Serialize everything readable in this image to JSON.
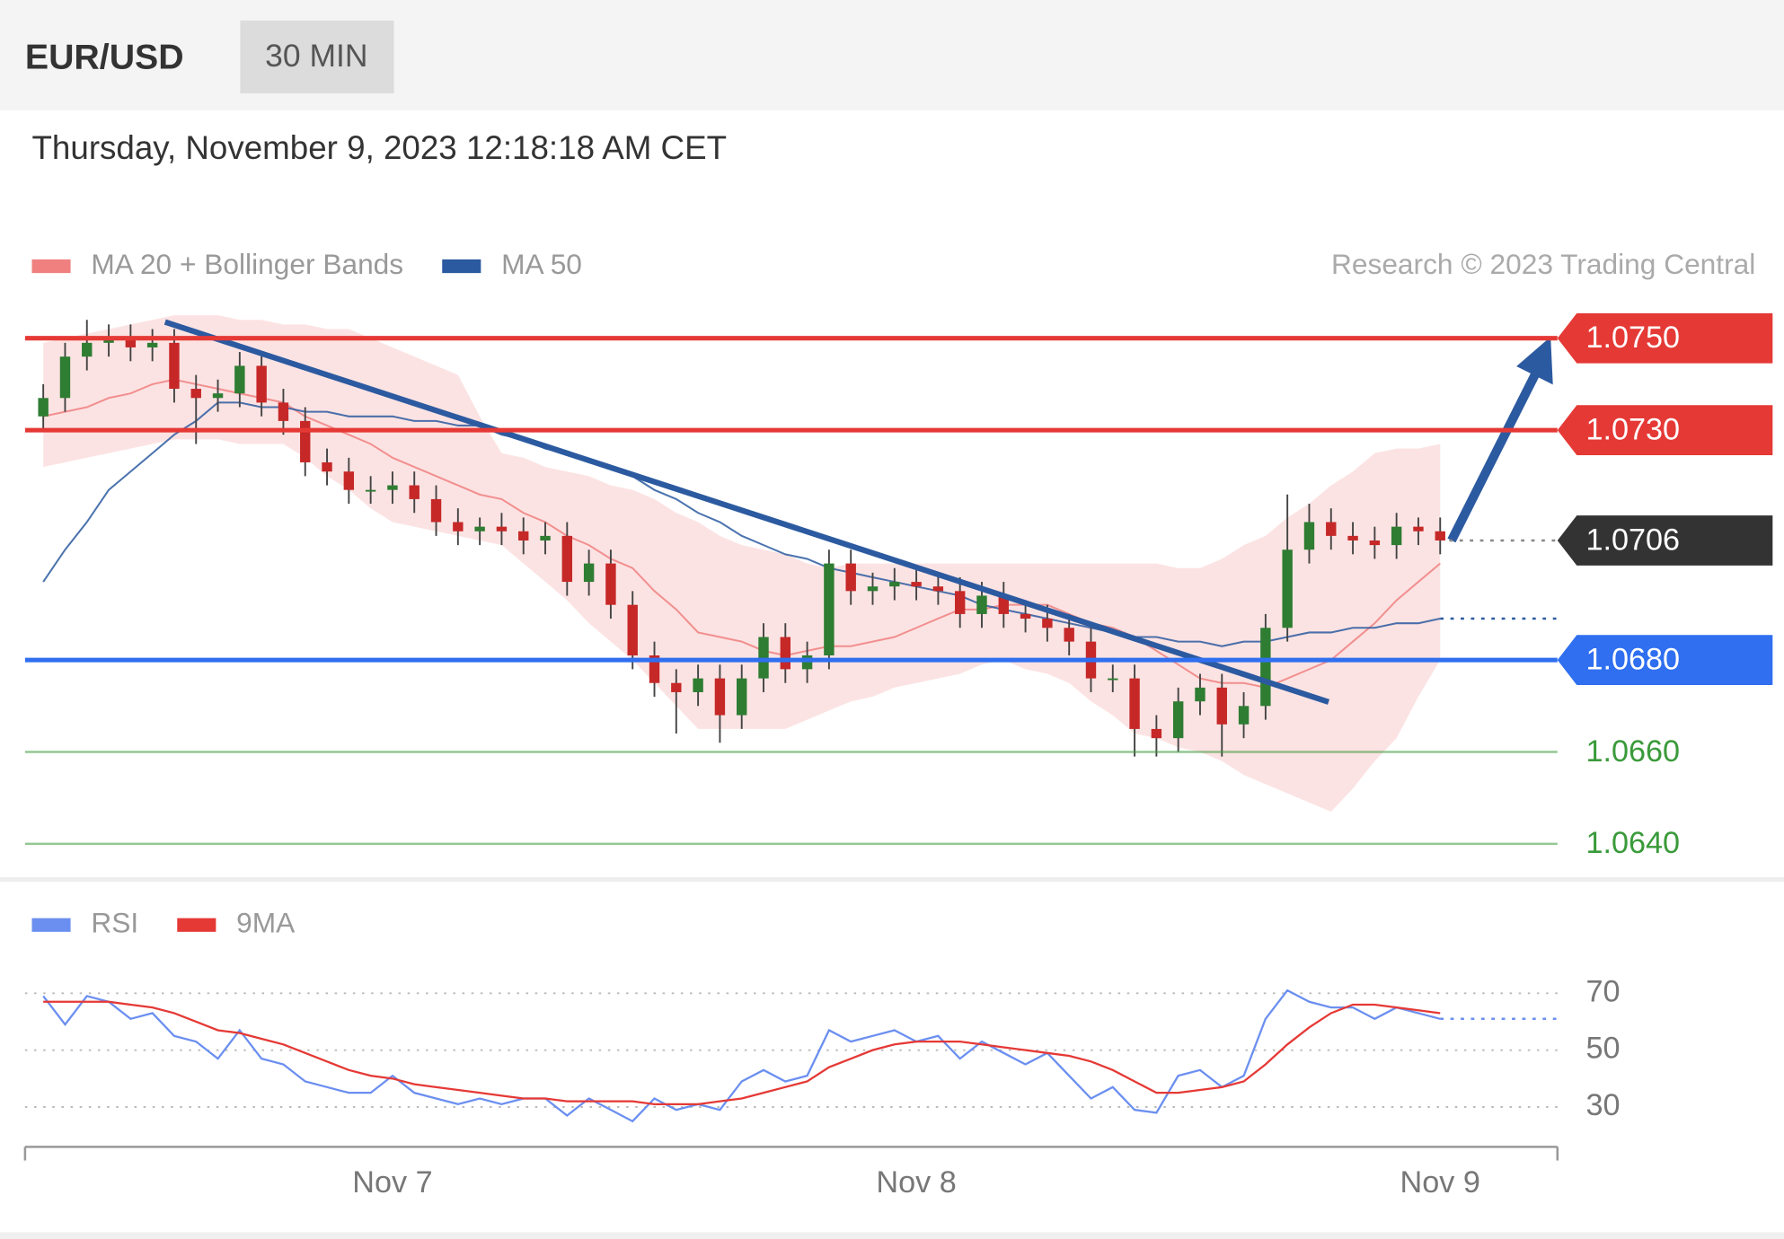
{
  "header": {
    "symbol": "EUR/USD",
    "interval": "30 MIN",
    "timestamp": "Thursday, November 9, 2023 12:18:18 AM CET"
  },
  "chart_data": [
    {
      "type": "candlestick",
      "credit": "Research © 2023 Trading Central",
      "up_color": "#2e7d32",
      "down_color": "#c62828",
      "ylim": [
        1.0633,
        1.0757
      ],
      "open": [
        1.0733,
        1.0737,
        1.0746,
        1.0749,
        1.075,
        1.0748,
        1.0749,
        1.0739,
        1.0737,
        1.0738,
        1.0744,
        1.0736,
        1.0732,
        1.0723,
        1.0721,
        1.0717,
        1.0717,
        1.0718,
        1.0715,
        1.071,
        1.0708,
        1.0709,
        1.0708,
        1.0706,
        1.0707,
        1.0697,
        1.0701,
        1.0692,
        1.0681,
        1.0675,
        1.0673,
        1.0676,
        1.0668,
        1.0676,
        1.0685,
        1.0678,
        1.0681,
        1.0701,
        1.0695,
        1.0696,
        1.0697,
        1.0696,
        1.0695,
        1.069,
        1.0694,
        1.069,
        1.0689,
        1.0687,
        1.0684,
        1.0676,
        1.0676,
        1.0665,
        1.0663,
        1.0671,
        1.0674,
        1.0666,
        1.067,
        1.0687,
        1.0704,
        1.071,
        1.0707,
        1.0706,
        1.0705,
        1.0709,
        1.0708
      ],
      "high": [
        1.074,
        1.0749,
        1.0754,
        1.0753,
        1.0753,
        1.0752,
        1.0752,
        1.0742,
        1.0741,
        1.0747,
        1.0747,
        1.0739,
        1.0735,
        1.0726,
        1.0724,
        1.072,
        1.0721,
        1.0721,
        1.0718,
        1.0713,
        1.0711,
        1.0712,
        1.0711,
        1.071,
        1.071,
        1.0704,
        1.0704,
        1.0695,
        1.0684,
        1.0678,
        1.0679,
        1.0679,
        1.0679,
        1.0688,
        1.0688,
        1.0684,
        1.0704,
        1.0704,
        1.0699,
        1.07,
        1.07,
        1.0699,
        1.0698,
        1.0697,
        1.0697,
        1.0693,
        1.0692,
        1.069,
        1.0687,
        1.0679,
        1.0679,
        1.0668,
        1.0674,
        1.0677,
        1.0677,
        1.0673,
        1.069,
        1.0716,
        1.0714,
        1.0713,
        1.071,
        1.0709,
        1.0712,
        1.0711,
        1.0711
      ],
      "low": [
        1.073,
        1.0734,
        1.0743,
        1.0746,
        1.0745,
        1.0745,
        1.0736,
        1.0727,
        1.0734,
        1.0735,
        1.0733,
        1.0729,
        1.072,
        1.0718,
        1.0714,
        1.0714,
        1.0714,
        1.0712,
        1.0707,
        1.0705,
        1.0705,
        1.0705,
        1.0703,
        1.0703,
        1.0694,
        1.0694,
        1.0689,
        1.0678,
        1.0672,
        1.0664,
        1.067,
        1.0662,
        1.0665,
        1.0673,
        1.0675,
        1.0675,
        1.0678,
        1.0692,
        1.0692,
        1.0693,
        1.0693,
        1.0692,
        1.0687,
        1.0687,
        1.0687,
        1.0686,
        1.0684,
        1.0681,
        1.0673,
        1.0673,
        1.0659,
        1.0659,
        1.066,
        1.0668,
        1.0659,
        1.0663,
        1.0667,
        1.0684,
        1.0701,
        1.0704,
        1.0703,
        1.0702,
        1.0702,
        1.0705,
        1.0703
      ],
      "close": [
        1.0737,
        1.0746,
        1.0749,
        1.075,
        1.0748,
        1.0749,
        1.0739,
        1.0737,
        1.0738,
        1.0744,
        1.0736,
        1.0732,
        1.0723,
        1.0721,
        1.0717,
        1.0717,
        1.0718,
        1.0715,
        1.071,
        1.0708,
        1.0709,
        1.0708,
        1.0706,
        1.0707,
        1.0697,
        1.0701,
        1.0692,
        1.0681,
        1.0675,
        1.0673,
        1.0676,
        1.0668,
        1.0676,
        1.0685,
        1.0678,
        1.0681,
        1.0701,
        1.0695,
        1.0696,
        1.0697,
        1.0696,
        1.0695,
        1.069,
        1.0694,
        1.069,
        1.0689,
        1.0687,
        1.0684,
        1.0676,
        1.0676,
        1.0665,
        1.0663,
        1.0671,
        1.0674,
        1.0666,
        1.067,
        1.0687,
        1.0704,
        1.071,
        1.0707,
        1.0706,
        1.0705,
        1.0709,
        1.0708,
        1.0706
      ],
      "series": [
        {
          "name": "MA 20 + Bollinger Bands",
          "color": "#f08080",
          "values": [
            1.0733,
            1.0734,
            1.0735,
            1.0737,
            1.0738,
            1.074,
            1.0741,
            1.074,
            1.0739,
            1.0738,
            1.0737,
            1.0736,
            1.0733,
            1.0731,
            1.0729,
            1.0727,
            1.0724,
            1.0722,
            1.072,
            1.0718,
            1.0716,
            1.0715,
            1.0712,
            1.071,
            1.0707,
            1.0705,
            1.0702,
            1.07,
            1.0695,
            1.0691,
            1.0686,
            1.0685,
            1.0684,
            1.0682,
            1.0681,
            1.0682,
            1.0683,
            1.0683,
            1.0684,
            1.0685,
            1.0687,
            1.0689,
            1.0691,
            1.0691,
            1.0692,
            1.0692,
            1.0692,
            1.069,
            1.0688,
            1.0687,
            1.0685,
            1.0682,
            1.0679,
            1.0676,
            1.0675,
            1.0675,
            1.0674,
            1.0676,
            1.0678,
            1.068,
            1.0684,
            1.0688,
            1.0693,
            1.0697,
            1.0701
          ],
          "upper": [
            1.0749,
            1.075,
            1.0751,
            1.0752,
            1.0753,
            1.0754,
            1.0755,
            1.0755,
            1.0755,
            1.0754,
            1.0754,
            1.0753,
            1.0753,
            1.0752,
            1.0752,
            1.075,
            1.0748,
            1.0746,
            1.0744,
            1.0742,
            1.0733,
            1.0725,
            1.0724,
            1.0722,
            1.0721,
            1.072,
            1.0718,
            1.0717,
            1.0715,
            1.0712,
            1.071,
            1.0707,
            1.0705,
            1.0704,
            1.0703,
            1.0701,
            1.07,
            1.0701,
            1.0701,
            1.0701,
            1.0701,
            1.0701,
            1.0701,
            1.0701,
            1.0701,
            1.0701,
            1.0701,
            1.0701,
            1.0701,
            1.0701,
            1.0701,
            1.0701,
            1.07,
            1.07,
            1.0702,
            1.0705,
            1.0707,
            1.0711,
            1.0714,
            1.0718,
            1.0721,
            1.0725,
            1.0726,
            1.0726,
            1.0727
          ],
          "lower": [
            1.0722,
            1.0723,
            1.0724,
            1.0725,
            1.0726,
            1.0727,
            1.0728,
            1.0728,
            1.0728,
            1.0727,
            1.0727,
            1.0727,
            1.0724,
            1.072,
            1.0717,
            1.0713,
            1.071,
            1.0709,
            1.0708,
            1.0707,
            1.0706,
            1.0705,
            1.0701,
            1.0697,
            1.0693,
            1.0688,
            1.0684,
            1.068,
            1.0675,
            1.067,
            1.0665,
            1.0665,
            1.0665,
            1.0665,
            1.0665,
            1.0667,
            1.0669,
            1.0671,
            1.0672,
            1.0674,
            1.0675,
            1.0676,
            1.0677,
            1.0679,
            1.068,
            1.0678,
            1.0677,
            1.0675,
            1.0671,
            1.0668,
            1.0664,
            1.0663,
            1.0661,
            1.066,
            1.0658,
            1.0655,
            1.0653,
            1.0651,
            1.0649,
            1.0647,
            1.0652,
            1.0658,
            1.0663,
            1.0672,
            1.068
          ]
        },
        {
          "name": "MA 50",
          "color": "#2c5aa0",
          "values": [
            1.0697,
            1.0704,
            1.071,
            1.0717,
            1.0721,
            1.0725,
            1.0729,
            1.0732,
            1.0736,
            1.0736,
            1.0735,
            1.0735,
            1.0734,
            1.0734,
            1.0733,
            1.0733,
            1.0733,
            1.0732,
            1.0732,
            1.0731,
            1.0731,
            1.0729,
            1.0728,
            1.0726,
            1.0725,
            1.0723,
            1.0722,
            1.072,
            1.0717,
            1.0715,
            1.0712,
            1.071,
            1.0707,
            1.0705,
            1.0703,
            1.0702,
            1.07,
            1.0699,
            1.0698,
            1.0697,
            1.0696,
            1.0695,
            1.0694,
            1.0692,
            1.0691,
            1.069,
            1.0689,
            1.0688,
            1.0687,
            1.0686,
            1.0685,
            1.0685,
            1.0684,
            1.0684,
            1.0683,
            1.0684,
            1.0684,
            1.0685,
            1.0686,
            1.0686,
            1.0687,
            1.0687,
            1.0688,
            1.0688,
            1.0689
          ]
        }
      ],
      "levels": [
        {
          "value": 1.075,
          "label": "1.0750",
          "color": "#e53935",
          "line": "solid",
          "tag": true
        },
        {
          "value": 1.073,
          "label": "1.0730",
          "color": "#e53935",
          "line": "solid",
          "tag": true
        },
        {
          "value": 1.0706,
          "label": "1.0706",
          "color": "#333333",
          "line": "dotted",
          "tag": true
        },
        {
          "value": 1.068,
          "label": "1.0680",
          "color": "#2f6ff0",
          "line": "solid",
          "tag": true
        },
        {
          "value": 1.066,
          "label": "1.0660",
          "color": "#3a9a3a",
          "line": "thin",
          "tag": false
        },
        {
          "value": 1.064,
          "label": "1.0640",
          "color": "#3a9a3a",
          "line": "thin",
          "tag": false
        }
      ]
    },
    {
      "type": "line",
      "categories": [
        null,
        null,
        null,
        null,
        null,
        null,
        null,
        null,
        null,
        null,
        null,
        null,
        null,
        null,
        null,
        null,
        "Nov 7",
        null,
        null,
        null,
        null,
        null,
        null,
        null,
        null,
        null,
        null,
        null,
        null,
        null,
        null,
        null,
        null,
        null,
        null,
        null,
        null,
        null,
        null,
        null,
        "Nov 8",
        null,
        null,
        null,
        null,
        null,
        null,
        null,
        null,
        null,
        null,
        null,
        null,
        null,
        null,
        null,
        null,
        null,
        null,
        null,
        null,
        null,
        null,
        null,
        "Nov 9"
      ],
      "ylim": [
        16,
        80
      ],
      "yticks": [
        30,
        50,
        70
      ],
      "grid": true,
      "series": [
        {
          "name": "RSI",
          "color": "#6b8ff0",
          "values": [
            69,
            59,
            69,
            67,
            61,
            63,
            55,
            53,
            47,
            57,
            47,
            45,
            39,
            37,
            35,
            35,
            41,
            35,
            33,
            31,
            33,
            31,
            33,
            33,
            27,
            33,
            29,
            25,
            33,
            29,
            31,
            29,
            39,
            43,
            39,
            41,
            57,
            53,
            55,
            57,
            53,
            55,
            47,
            53,
            49,
            45,
            49,
            41,
            33,
            37,
            29,
            28,
            41,
            43,
            37,
            41,
            61,
            71,
            67,
            65,
            65,
            61,
            65,
            63,
            61
          ]
        },
        {
          "name": "9MA",
          "color": "#e53935",
          "values": [
            67,
            67,
            67,
            67,
            66,
            65,
            63,
            60,
            57,
            56,
            54,
            52,
            49,
            46,
            43,
            41,
            40,
            38,
            37,
            36,
            35,
            34,
            33,
            33,
            32,
            32,
            32,
            32,
            31,
            31,
            31,
            32,
            33,
            35,
            37,
            39,
            44,
            47,
            50,
            52,
            53,
            53,
            53,
            52,
            51,
            50,
            49,
            48,
            46,
            43,
            39,
            35,
            35,
            36,
            37,
            39,
            45,
            52,
            58,
            63,
            66,
            66,
            65,
            64,
            63
          ]
        }
      ]
    }
  ]
}
